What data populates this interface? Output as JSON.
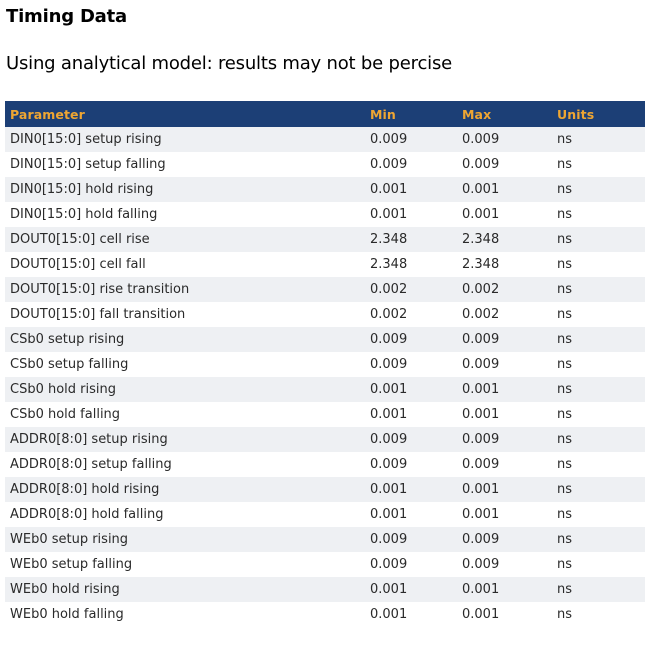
{
  "page": {
    "title": "Timing Data",
    "subtitle": "Using analytical model: results may not be percise"
  },
  "colors": {
    "header_bg": "#1c3f76",
    "header_text": "#efa632",
    "row_stripe": "#eef0f3",
    "body_text": "#2a2a2a"
  },
  "table": {
    "columns": [
      "Parameter",
      "Min",
      "Max",
      "Units"
    ],
    "rows": [
      {
        "parameter": "DIN0[15:0] setup rising",
        "min": "0.009",
        "max": "0.009",
        "units": "ns"
      },
      {
        "parameter": "DIN0[15:0] setup falling",
        "min": "0.009",
        "max": "0.009",
        "units": "ns"
      },
      {
        "parameter": "DIN0[15:0] hold rising",
        "min": "0.001",
        "max": "0.001",
        "units": "ns"
      },
      {
        "parameter": "DIN0[15:0] hold falling",
        "min": "0.001",
        "max": "0.001",
        "units": "ns"
      },
      {
        "parameter": "DOUT0[15:0] cell rise",
        "min": "2.348",
        "max": "2.348",
        "units": "ns"
      },
      {
        "parameter": "DOUT0[15:0] cell fall",
        "min": "2.348",
        "max": "2.348",
        "units": "ns"
      },
      {
        "parameter": "DOUT0[15:0] rise transition",
        "min": "0.002",
        "max": "0.002",
        "units": "ns"
      },
      {
        "parameter": "DOUT0[15:0] fall transition",
        "min": "0.002",
        "max": "0.002",
        "units": "ns"
      },
      {
        "parameter": "CSb0 setup rising",
        "min": "0.009",
        "max": "0.009",
        "units": "ns"
      },
      {
        "parameter": "CSb0 setup falling",
        "min": "0.009",
        "max": "0.009",
        "units": "ns"
      },
      {
        "parameter": "CSb0 hold rising",
        "min": "0.001",
        "max": "0.001",
        "units": "ns"
      },
      {
        "parameter": "CSb0 hold falling",
        "min": "0.001",
        "max": "0.001",
        "units": "ns"
      },
      {
        "parameter": "ADDR0[8:0] setup rising",
        "min": "0.009",
        "max": "0.009",
        "units": "ns"
      },
      {
        "parameter": "ADDR0[8:0] setup falling",
        "min": "0.009",
        "max": "0.009",
        "units": "ns"
      },
      {
        "parameter": "ADDR0[8:0] hold rising",
        "min": "0.001",
        "max": "0.001",
        "units": "ns"
      },
      {
        "parameter": "ADDR0[8:0] hold falling",
        "min": "0.001",
        "max": "0.001",
        "units": "ns"
      },
      {
        "parameter": "WEb0 setup rising",
        "min": "0.009",
        "max": "0.009",
        "units": "ns"
      },
      {
        "parameter": "WEb0 setup falling",
        "min": "0.009",
        "max": "0.009",
        "units": "ns"
      },
      {
        "parameter": "WEb0 hold rising",
        "min": "0.001",
        "max": "0.001",
        "units": "ns"
      },
      {
        "parameter": "WEb0 hold falling",
        "min": "0.001",
        "max": "0.001",
        "units": "ns"
      }
    ]
  }
}
